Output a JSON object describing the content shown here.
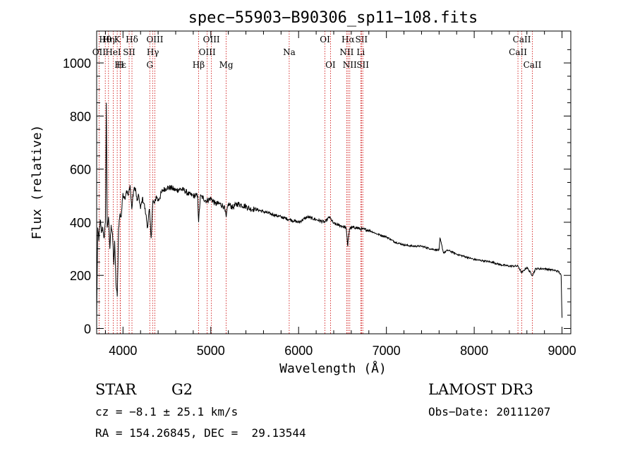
{
  "chart_data": {
    "type": "line",
    "title": "spec−55903−B90306_sp11−108.fits",
    "xlabel": "Wavelength (Å)",
    "ylabel": "Flux (relative)",
    "xlim": [
      3700,
      9100
    ],
    "ylim": [
      -20,
      1120
    ],
    "xticks": [
      4000,
      5000,
      6000,
      7000,
      8000,
      9000
    ],
    "xtick_labels": [
      "4000",
      "5000",
      "6000",
      "7000",
      "8000",
      "9000"
    ],
    "yticks": [
      0,
      200,
      400,
      600,
      800,
      1000
    ],
    "ytick_labels": [
      "0",
      "200",
      "400",
      "600",
      "800",
      "1000"
    ],
    "series": [
      {
        "name": "flux",
        "x": [
          3700,
          3712,
          3725,
          3740,
          3755,
          3770,
          3785,
          3800,
          3810,
          3820,
          3835,
          3850,
          3865,
          3880,
          3895,
          3905,
          3920,
          3935,
          3950,
          3965,
          3980,
          4000,
          4020,
          4040,
          4060,
          4080,
          4100,
          4120,
          4140,
          4160,
          4180,
          4200,
          4220,
          4240,
          4260,
          4280,
          4300,
          4320,
          4340,
          4360,
          4380,
          4400,
          4450,
          4500,
          4550,
          4600,
          4650,
          4700,
          4750,
          4800,
          4850,
          4861,
          4880,
          4900,
          4950,
          5000,
          5050,
          5100,
          5150,
          5175,
          5200,
          5250,
          5300,
          5350,
          5400,
          5450,
          5500,
          5600,
          5700,
          5800,
          5900,
          6000,
          6100,
          6200,
          6300,
          6350,
          6400,
          6450,
          6500,
          6540,
          6560,
          6563,
          6580,
          6600,
          6650,
          6700,
          6800,
          6900,
          7000,
          7100,
          7200,
          7300,
          7400,
          7500,
          7600,
          7610,
          7650,
          7700,
          7800,
          7900,
          8000,
          8100,
          8200,
          8300,
          8400,
          8500,
          8540,
          8600,
          8662,
          8700,
          8800,
          8900,
          8960,
          8990,
          9000
        ],
        "y": [
          40,
          380,
          330,
          410,
          360,
          380,
          340,
          400,
          850,
          380,
          420,
          300,
          390,
          360,
          240,
          330,
          170,
          120,
          380,
          430,
          420,
          510,
          490,
          520,
          500,
          540,
          450,
          520,
          530,
          480,
          500,
          450,
          490,
          470,
          430,
          380,
          450,
          340,
          480,
          470,
          500,
          480,
          520,
          530,
          530,
          520,
          525,
          520,
          505,
          500,
          500,
          400,
          495,
          495,
          480,
          490,
          470,
          470,
          460,
          420,
          470,
          455,
          470,
          465,
          460,
          450,
          450,
          440,
          430,
          420,
          410,
          400,
          420,
          410,
          400,
          420,
          395,
          390,
          385,
          380,
          310,
          330,
          375,
          380,
          380,
          375,
          370,
          355,
          345,
          325,
          315,
          310,
          310,
          300,
          295,
          340,
          285,
          295,
          280,
          270,
          260,
          255,
          250,
          240,
          235,
          235,
          210,
          230,
          200,
          225,
          225,
          220,
          215,
          200,
          40
        ]
      }
    ],
    "spectral_lines": [
      {
        "label": "Hθ",
        "x": 3798,
        "row": 0
      },
      {
        "label": "Hη",
        "x": 3835,
        "row": 0
      },
      {
        "label": "K",
        "x": 3934,
        "row": 0
      },
      {
        "label": "Hδ",
        "x": 4102,
        "row": 0
      },
      {
        "label": "OIII",
        "x": 4363,
        "row": 0
      },
      {
        "label": "OIII",
        "x": 5007,
        "row": 0
      },
      {
        "label": "OI",
        "x": 6300,
        "row": 0
      },
      {
        "label": "Hα",
        "x": 6563,
        "row": 0
      },
      {
        "label": "SII",
        "x": 6716,
        "row": 0
      },
      {
        "label": "CaII",
        "x": 8542,
        "row": 0
      },
      {
        "label": "OII",
        "x": 3727,
        "row": 1
      },
      {
        "label": "HeI",
        "x": 3889,
        "row": 1
      },
      {
        "label": "SII",
        "x": 4070,
        "row": 1
      },
      {
        "label": "Hγ",
        "x": 4340,
        "row": 1
      },
      {
        "label": "OIII",
        "x": 4959,
        "row": 1
      },
      {
        "label": "Na",
        "x": 5893,
        "row": 1
      },
      {
        "label": "NII",
        "x": 6548,
        "row": 1
      },
      {
        "label": "Li",
        "x": 6708,
        "row": 1
      },
      {
        "label": "CaII",
        "x": 8498,
        "row": 1
      },
      {
        "label": "Hε",
        "x": 3970,
        "row": 2
      },
      {
        "label": "H",
        "x": 3968,
        "row": 2
      },
      {
        "label": "G",
        "x": 4305,
        "row": 2
      },
      {
        "label": "Hβ",
        "x": 4861,
        "row": 2
      },
      {
        "label": "Mg",
        "x": 5175,
        "row": 2
      },
      {
        "label": "OI",
        "x": 6363,
        "row": 2
      },
      {
        "label": "NII",
        "x": 6583,
        "row": 2
      },
      {
        "label": "SII",
        "x": 6731,
        "row": 2
      },
      {
        "label": "CaII",
        "x": 8662,
        "row": 2
      }
    ]
  },
  "info": {
    "class": "STAR",
    "subclass": "G2",
    "survey": "LAMOST DR3",
    "cz": "cz = −8.1 ± 25.1 km/s",
    "obs_date": "Obs−Date: 20111207",
    "radec": "RA = 154.26845, DEC =  29.13544"
  },
  "colors": {
    "spectrum": "#000000",
    "line_marker": "#cc0000",
    "axis": "#000000",
    "background": "#ffffff"
  }
}
